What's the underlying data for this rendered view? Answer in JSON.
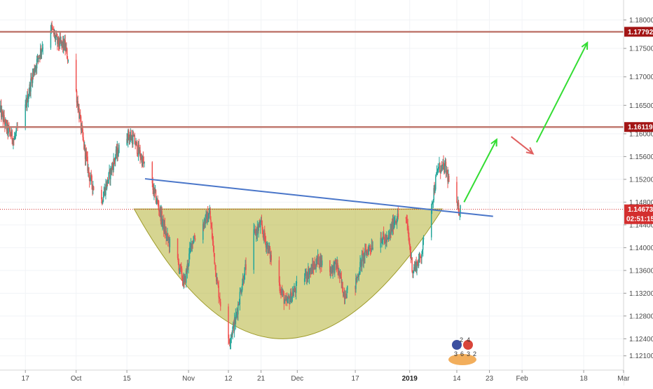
{
  "chart_data": {
    "type": "candlestick",
    "title": "",
    "xlabel": "",
    "ylabel": "",
    "x_range": [
      "2018-09-10",
      "2019-03-01"
    ],
    "ylim": [
      1.1185,
      1.1835
    ],
    "y_ticks": [
      "1.18000",
      "1.17500",
      "1.17000",
      "1.16500",
      "1.16000",
      "1.15600",
      "1.15200",
      "1.14800",
      "1.14400",
      "1.14000",
      "1.13600",
      "1.13200",
      "1.12800",
      "1.12400",
      "1.12100"
    ],
    "y_tick_values": [
      1.18,
      1.175,
      1.17,
      1.165,
      1.16,
      1.156,
      1.152,
      1.148,
      1.144,
      1.14,
      1.136,
      1.132,
      1.128,
      1.124,
      1.121
    ],
    "x_ticks": [
      {
        "label": "17",
        "date": "2018-09-17",
        "bold": false
      },
      {
        "label": "Oct",
        "date": "2018-10-01",
        "bold": false
      },
      {
        "label": "15",
        "date": "2018-10-15",
        "bold": false
      },
      {
        "label": "Nov",
        "date": "2018-11-01",
        "bold": false
      },
      {
        "label": "12",
        "date": "2018-11-12",
        "bold": false
      },
      {
        "label": "21",
        "date": "2018-11-21",
        "bold": false
      },
      {
        "label": "Dec",
        "date": "2018-12-01",
        "bold": false
      },
      {
        "label": "17",
        "date": "2018-12-17",
        "bold": false
      },
      {
        "label": "2019",
        "date": "2019-01-01",
        "bold": true
      },
      {
        "label": "14",
        "date": "2019-01-14",
        "bold": false
      },
      {
        "label": "23",
        "date": "2019-01-23",
        "bold": false
      },
      {
        "label": "Feb",
        "date": "2019-02-01",
        "bold": false
      },
      {
        "label": "18",
        "date": "2019-02-18",
        "bold": false
      },
      {
        "label": "Mar",
        "date": "2019-03-01",
        "bold": false
      }
    ],
    "up_color": "#26a69a",
    "down_color": "#ef5350",
    "price_path": [
      [
        "2018-09-10",
        1.1645
      ],
      [
        "2018-09-12",
        1.161
      ],
      [
        "2018-09-14",
        1.159
      ],
      [
        "2018-09-17",
        1.164
      ],
      [
        "2018-09-19",
        1.17
      ],
      [
        "2018-09-21",
        1.174
      ],
      [
        "2018-09-24",
        1.179
      ],
      [
        "2018-09-26",
        1.176
      ],
      [
        "2018-09-28",
        1.1755
      ],
      [
        "2018-10-01",
        1.168
      ],
      [
        "2018-10-03",
        1.159
      ],
      [
        "2018-10-05",
        1.152
      ],
      [
        "2018-10-08",
        1.148
      ],
      [
        "2018-10-10",
        1.152
      ],
      [
        "2018-10-12",
        1.156
      ],
      [
        "2018-10-15",
        1.16
      ],
      [
        "2018-10-17",
        1.159
      ],
      [
        "2018-10-19",
        1.156
      ],
      [
        "2018-10-22",
        1.151
      ],
      [
        "2018-10-24",
        1.147
      ],
      [
        "2018-10-26",
        1.142
      ],
      [
        "2018-10-29",
        1.138
      ],
      [
        "2018-10-31",
        1.1335
      ],
      [
        "2018-11-02",
        1.141
      ],
      [
        "2018-11-05",
        1.144
      ],
      [
        "2018-11-07",
        1.146
      ],
      [
        "2018-11-09",
        1.134
      ],
      [
        "2018-11-12",
        1.123
      ],
      [
        "2018-11-14",
        1.127
      ],
      [
        "2018-11-16",
        1.134
      ],
      [
        "2018-11-19",
        1.142
      ],
      [
        "2018-11-21",
        1.144
      ],
      [
        "2018-11-23",
        1.14
      ],
      [
        "2018-11-26",
        1.134
      ],
      [
        "2018-11-28",
        1.13
      ],
      [
        "2018-11-30",
        1.132
      ],
      [
        "2018-12-03",
        1.135
      ],
      [
        "2018-12-05",
        1.136
      ],
      [
        "2018-12-07",
        1.138
      ],
      [
        "2018-12-10",
        1.136
      ],
      [
        "2018-12-12",
        1.137
      ],
      [
        "2018-12-14",
        1.132
      ],
      [
        "2018-12-17",
        1.133
      ],
      [
        "2018-12-19",
        1.138
      ],
      [
        "2018-12-21",
        1.14
      ],
      [
        "2018-12-24",
        1.142
      ],
      [
        "2018-12-26",
        1.141
      ],
      [
        "2018-12-28",
        1.145
      ],
      [
        "2018-12-31",
        1.146
      ],
      [
        "2019-01-02",
        1.136
      ],
      [
        "2019-01-04",
        1.138
      ],
      [
        "2019-01-07",
        1.147
      ],
      [
        "2019-01-09",
        1.154
      ],
      [
        "2019-01-11",
        1.154
      ],
      [
        "2019-01-14",
        1.147
      ],
      [
        "2019-01-15",
        1.1467
      ]
    ],
    "horizontal_levels": [
      {
        "value": 1.17792,
        "label": "1.17792",
        "color": "#c07a70",
        "bg": "#a31515"
      },
      {
        "value": 1.16119,
        "label": "1.16119",
        "color": "#c07a70",
        "bg": "#a31515"
      }
    ],
    "current_price": {
      "value": 1.14673,
      "label": "1.14673",
      "timer": "02:51:15",
      "bg": "#d32f2f"
    },
    "trendline": {
      "start": [
        "2018-10-20",
        1.1521
      ],
      "end": [
        "2019-01-24",
        1.1455
      ],
      "color": "#4a76c9"
    },
    "cup_pattern": {
      "rim_left": [
        "2018-10-17",
        1.1468
      ],
      "rim_right": [
        "2019-01-10",
        1.1468
      ],
      "bottom": [
        "2018-11-27",
        1.124
      ],
      "fill": "#b5b337",
      "stroke": "#9e9b2a"
    },
    "projection_arrows": [
      {
        "from": [
          "2019-01-16",
          1.148
        ],
        "to": [
          "2019-01-25",
          1.159
        ],
        "color": "#33dd33"
      },
      {
        "from": [
          "2019-01-29",
          1.1595
        ],
        "to": [
          "2019-02-04",
          1.1565
        ],
        "color": "#e06060"
      },
      {
        "from": [
          "2019-02-05",
          1.1585
        ],
        "to": [
          "2019-02-19",
          1.176
        ],
        "color": "#33dd33"
      }
    ]
  },
  "watermark": {
    "top_digits": [
      "2",
      "4"
    ],
    "bottom_digits": [
      "3",
      "6",
      "3",
      "2"
    ]
  }
}
